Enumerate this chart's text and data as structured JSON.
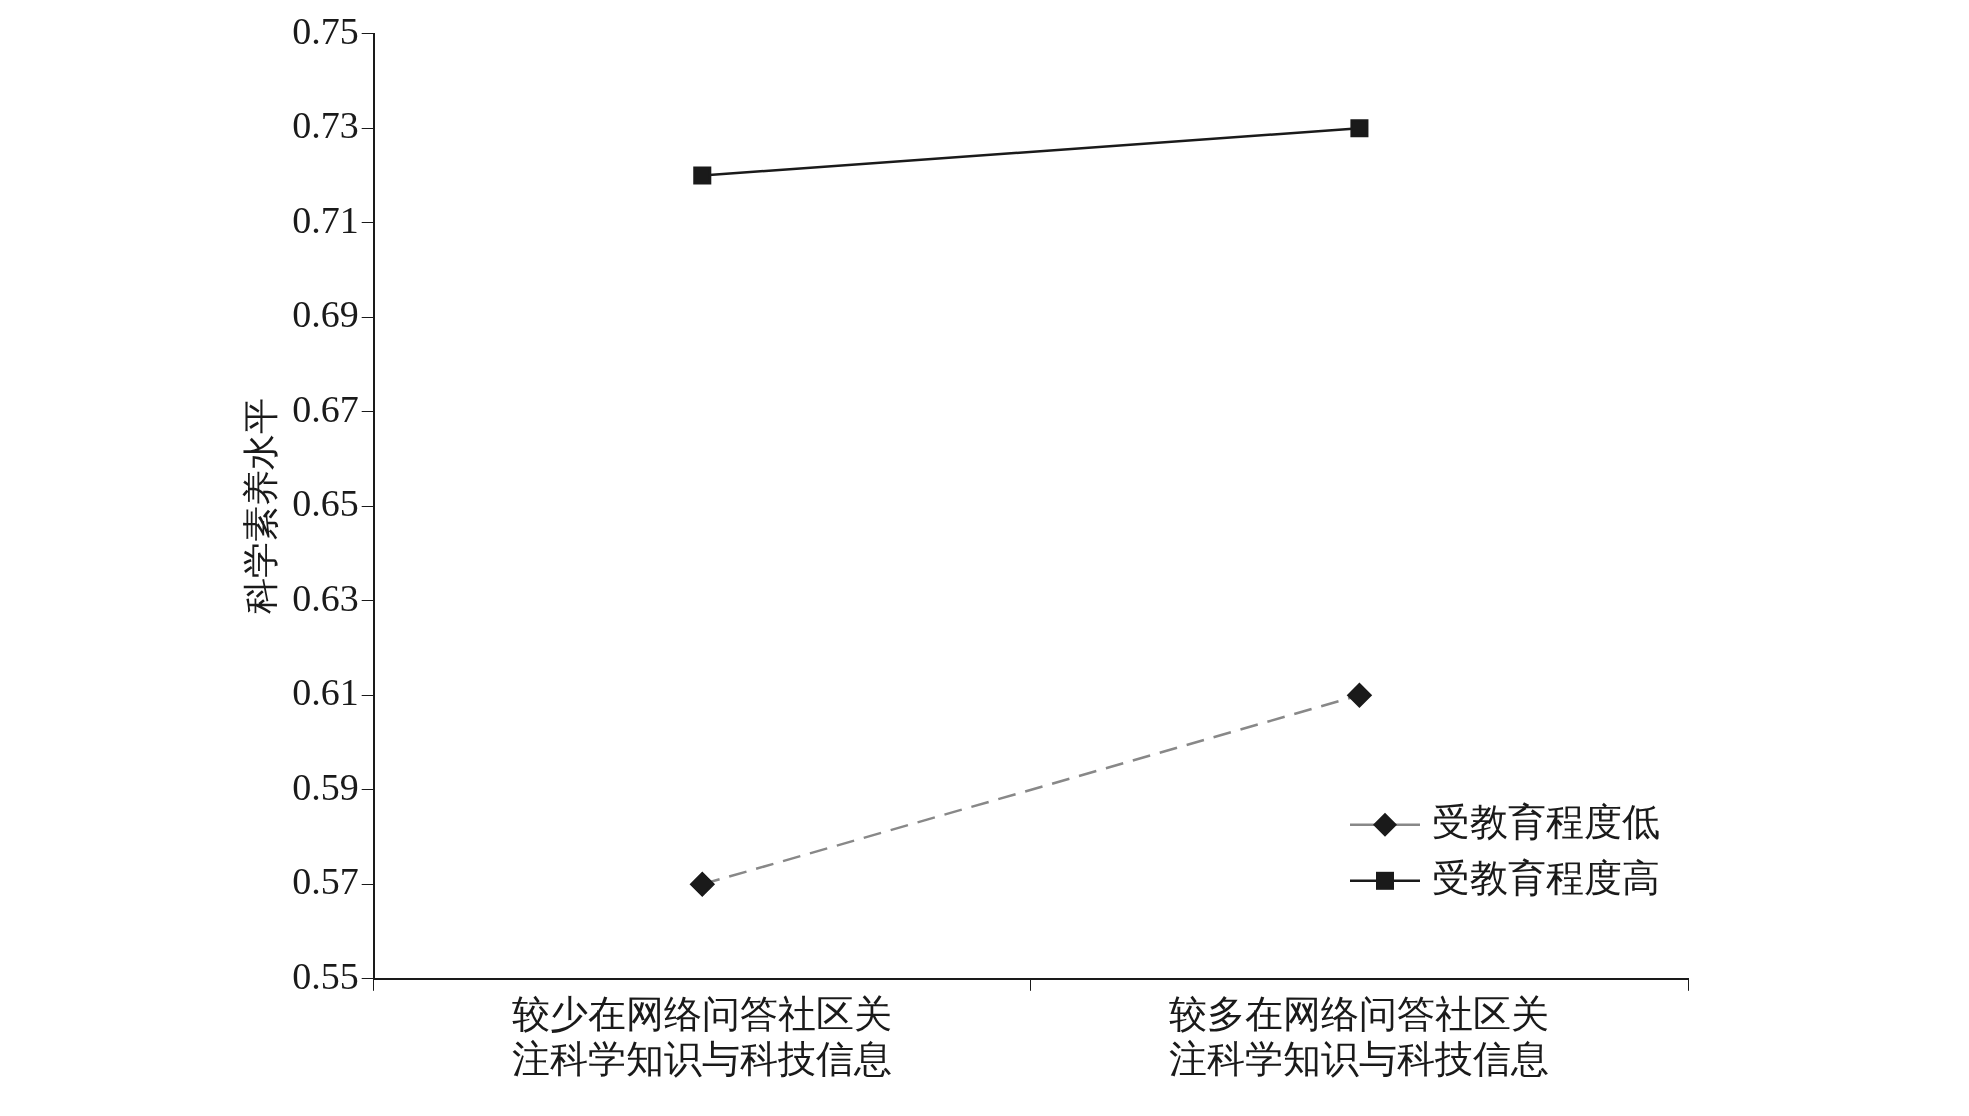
{
  "chart_data": {
    "type": "line",
    "ylabel": "科学素养水平",
    "categories": [
      "较少在网络问答社区关注科学知识与科技信息",
      "较多在网络问答社区关注科学知识与科技信息"
    ],
    "series": [
      {
        "name": "受教育程度低",
        "color": "#888888",
        "marker": "diamond",
        "line_style": "dashed",
        "values": [
          0.57,
          0.61
        ]
      },
      {
        "name": "受教育程度高",
        "color": "#1a1a1a",
        "marker": "square",
        "line_style": "solid",
        "values": [
          0.72,
          0.73
        ]
      }
    ],
    "ylim": [
      0.55,
      0.75
    ],
    "yticks": [
      0.55,
      0.57,
      0.59,
      0.61,
      0.63,
      0.65,
      0.67,
      0.69,
      0.71,
      0.73,
      0.75
    ],
    "grid": false,
    "legend": "bottom right"
  }
}
